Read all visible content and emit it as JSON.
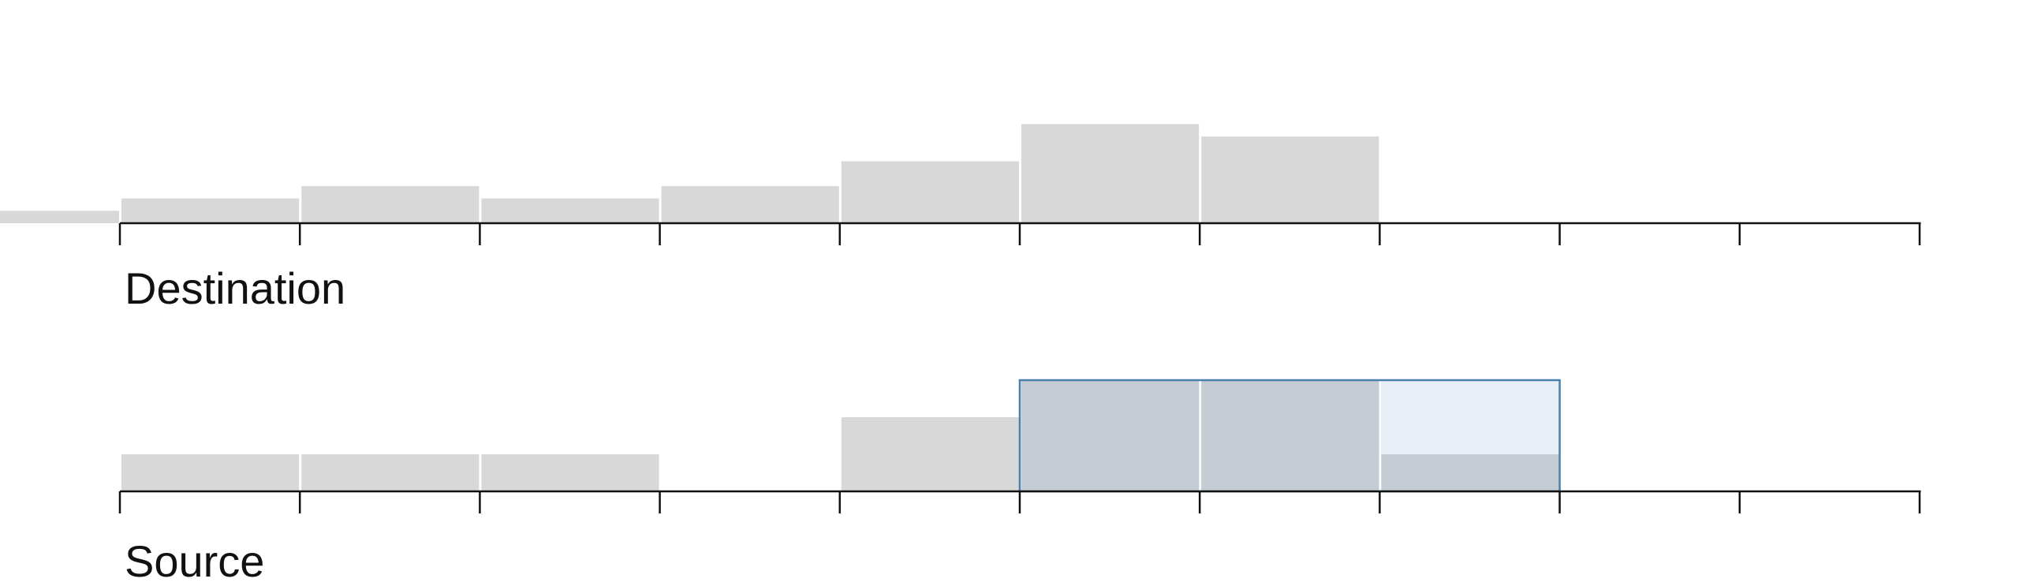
{
  "colors": {
    "bar": "#d8d8d8",
    "bar_selected": "#c5ccd4",
    "brush_fill": "#e8eff7",
    "brush_stroke": "#4a7fab",
    "axis": "#111111"
  },
  "chart_data": [
    {
      "type": "bar",
      "title": "Destination",
      "bin_edges": [
        -1,
        0,
        1,
        2,
        3,
        4,
        5,
        6,
        7,
        8,
        9,
        10
      ],
      "values": [
        1,
        2,
        3,
        2,
        3,
        5,
        8,
        7,
        0,
        0,
        0
      ],
      "ylim": [
        0,
        8
      ],
      "xlim": [
        0,
        10
      ]
    },
    {
      "type": "bar",
      "title": "Source",
      "bin_edges": [
        0,
        1,
        2,
        3,
        4,
        5,
        6,
        7,
        8,
        9,
        10
      ],
      "values": [
        1,
        1,
        1,
        0,
        2,
        3,
        3,
        1,
        0,
        0
      ],
      "selected_values": [
        0,
        0,
        0,
        0,
        0,
        3,
        3,
        1,
        0,
        0
      ],
      "ylim": [
        0,
        3
      ],
      "xlim": [
        0,
        10
      ],
      "brush": [
        5,
        8
      ]
    }
  ]
}
